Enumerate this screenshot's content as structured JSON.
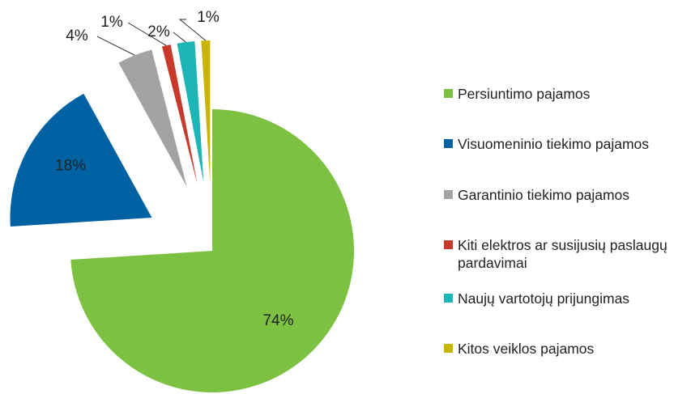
{
  "chart_data": {
    "type": "pie",
    "categories": [
      "Persiuntimo pajamos",
      "Visuomeninio tiekimo pajamos",
      "Garantinio tiekimo pajamos",
      "Kiti elektros ar susijusių paslaugų pardavimai",
      "Naujų vartotojų prijungimas",
      "Kitos veiklos pajamos"
    ],
    "values": [
      74,
      18,
      4,
      1,
      2,
      1
    ],
    "value_labels": [
      "74%",
      "18%",
      "4%",
      "1%",
      "2%",
      "1%"
    ],
    "colors": [
      "#7dc142",
      "#0062a3",
      "#a3a3a3",
      "#c8392b",
      "#1cb5b8",
      "#c9b400"
    ],
    "legend": "right"
  }
}
